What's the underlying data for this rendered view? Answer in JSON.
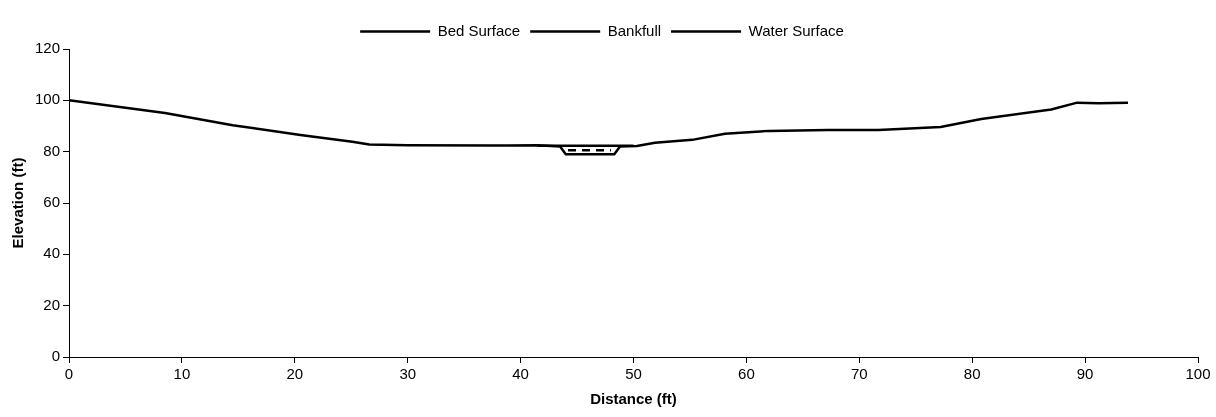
{
  "chart_data": {
    "type": "line",
    "xlabel": "Distance (ft)",
    "ylabel": "Elevation (ft)",
    "xlim": [
      0,
      100
    ],
    "xticks": [
      0,
      10,
      20,
      30,
      40,
      50,
      60,
      70,
      80,
      90,
      100
    ],
    "ylim": [
      0,
      120
    ],
    "yticks": [
      0,
      20,
      40,
      60,
      80,
      100,
      120
    ],
    "grid": false,
    "legend": "top",
    "marker": "none",
    "series": [
      {
        "name": "Bed Surface",
        "color": "#000000",
        "line_style": "solid",
        "x": [
          0,
          8.5,
          14.5,
          20.5,
          25.1,
          26.6,
          30,
          37.5,
          41.5,
          43.5,
          44,
          48.3,
          48.8,
          50.3,
          51.9,
          55.2,
          58.1,
          62,
          67.2,
          71.7,
          77.2,
          80.8,
          87,
          89.3,
          91.2,
          93.8
        ],
        "values": [
          100,
          95.1,
          90.3,
          86.5,
          83.9,
          82.8,
          82.5,
          82.4,
          82.5,
          82,
          79,
          79,
          82,
          82.2,
          83.5,
          84.6,
          87,
          88.1,
          88.4,
          88.4,
          89.6,
          92.7,
          96.4,
          99.1,
          98.9,
          99.1
        ]
      },
      {
        "name": "Bankfull",
        "color": "#000000",
        "line_style": "solid",
        "x": [
          41.5,
          50
        ],
        "values": [
          82.3,
          82.3
        ]
      },
      {
        "name": "Water Surface",
        "color": "#000000",
        "line_style": "dashed",
        "x": [
          44.2,
          48
        ],
        "values": [
          80.6,
          80.6
        ]
      }
    ]
  }
}
